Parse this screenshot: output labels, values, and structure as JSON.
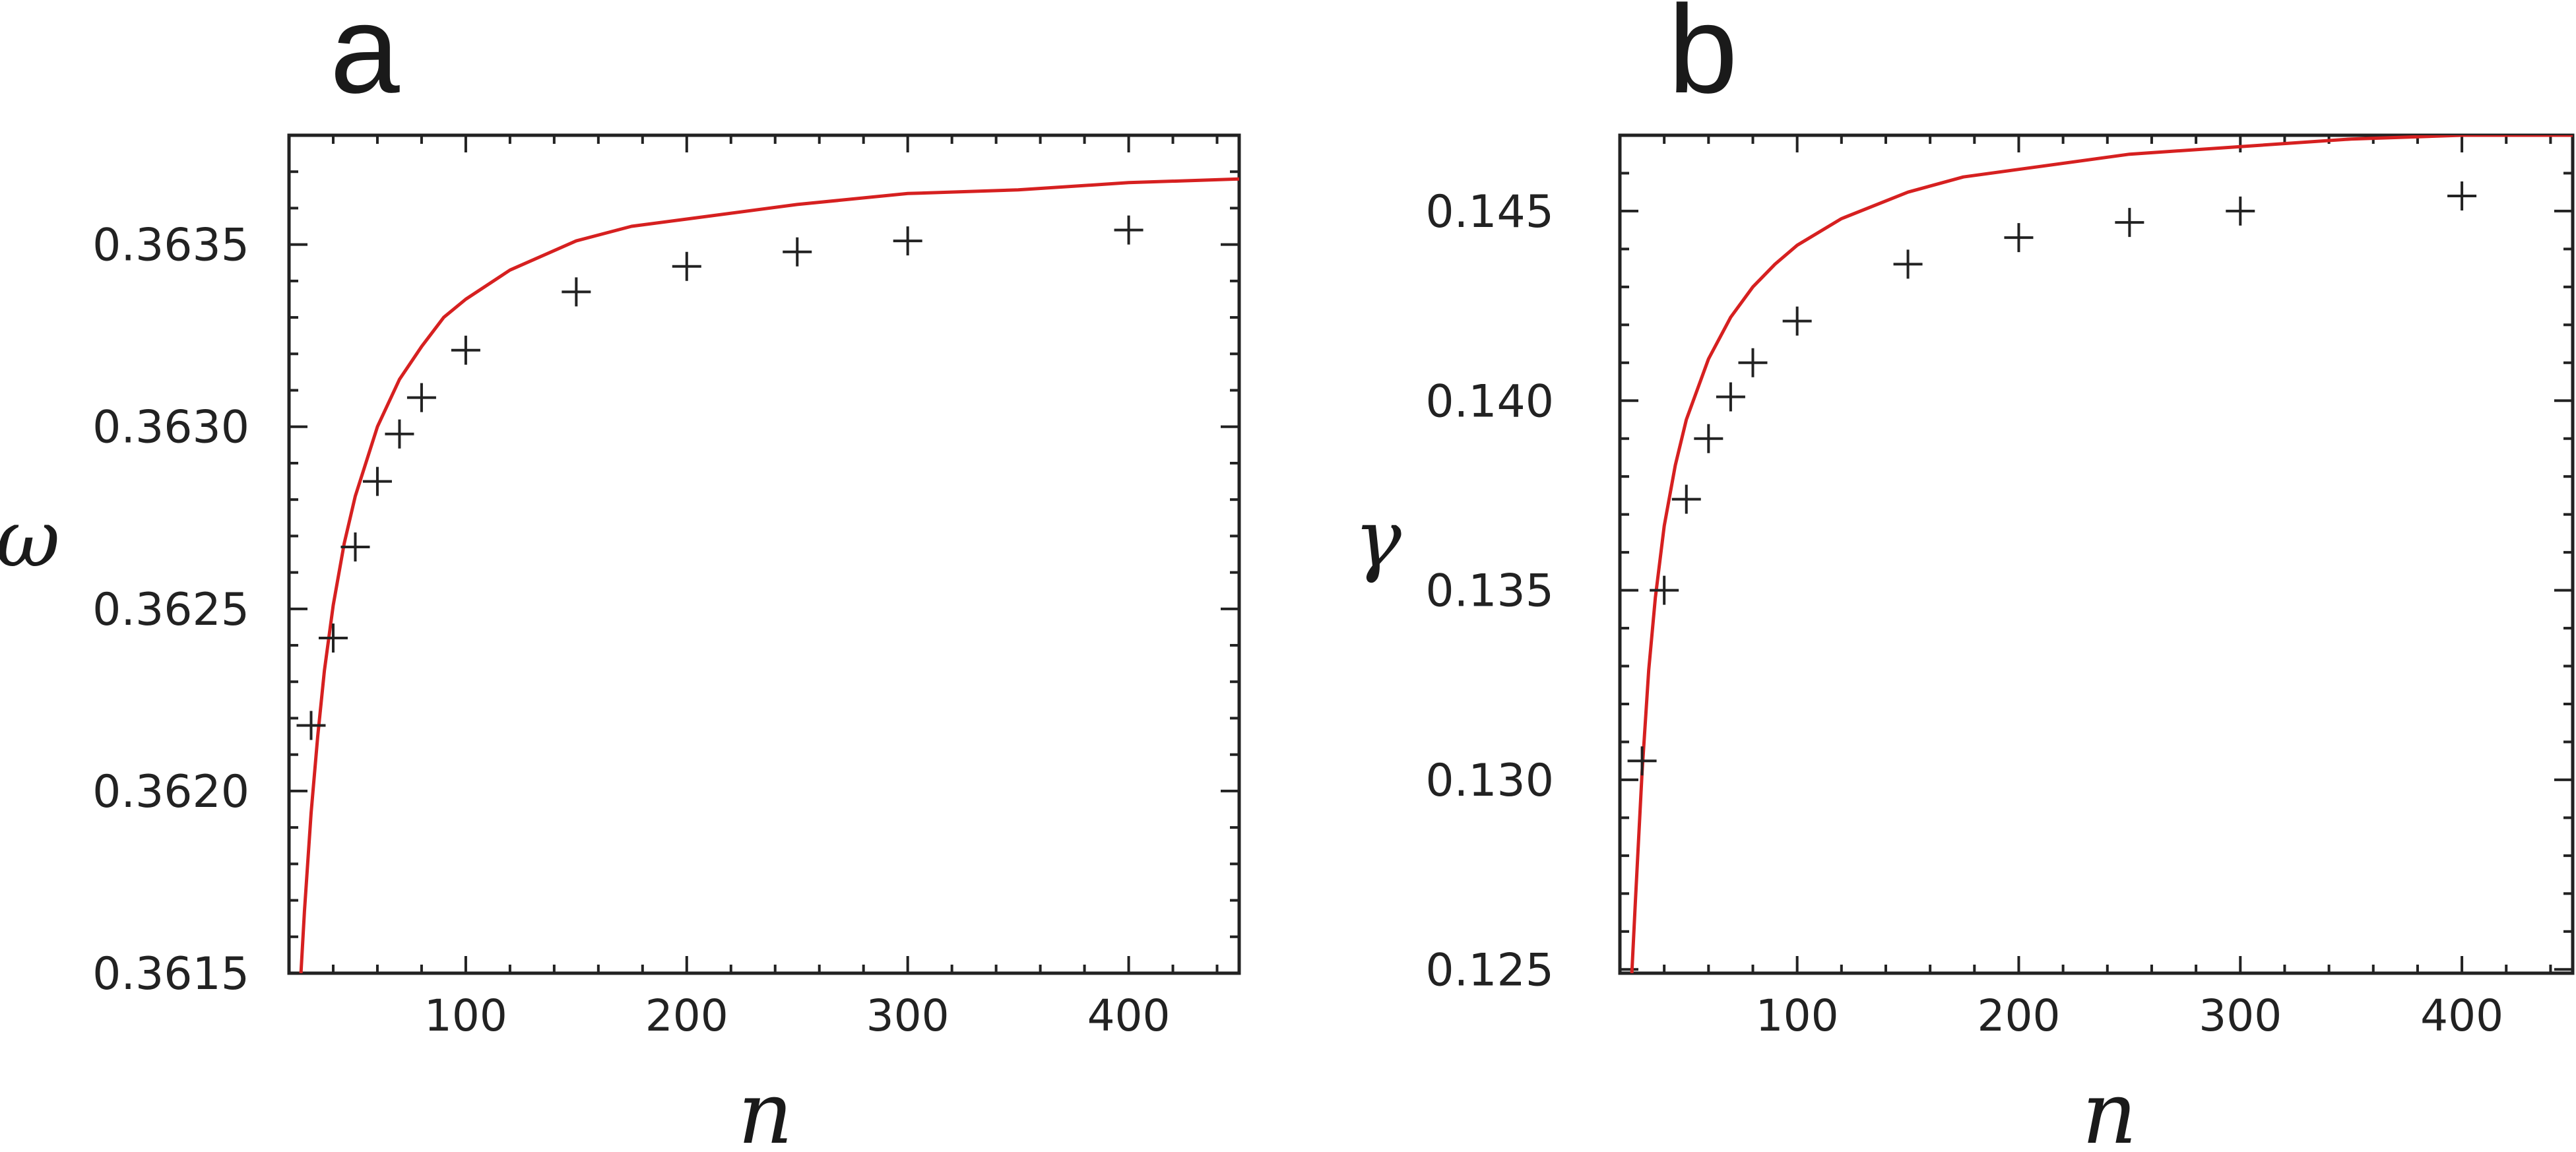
{
  "colors": {
    "fit_curve": "#d62020",
    "markers": "#222222",
    "axes": "#222222"
  },
  "chart_data": [
    {
      "type": "scatter",
      "panel_label": "a",
      "xlabel": "n",
      "ylabel": "ω",
      "xlim": [
        20,
        450
      ],
      "ylim": [
        0.3615,
        0.3638
      ],
      "xticks": [
        100,
        200,
        300,
        400
      ],
      "xtick_labels": [
        "100",
        "200",
        "300",
        "400"
      ],
      "yticks": [
        0.3615,
        0.362,
        0.3625,
        0.363,
        0.3635
      ],
      "ytick_labels": [
        "0.3615",
        "0.3620",
        "0.3625",
        "0.3630",
        "0.3635"
      ],
      "grid": false,
      "legend": false,
      "series": [
        {
          "kind": "markers",
          "marker": "plus",
          "x": [
            30,
            40,
            50,
            60,
            70,
            80,
            100,
            150,
            200,
            250,
            300,
            400
          ],
          "y": [
            0.36218,
            0.36242,
            0.36267,
            0.36285,
            0.36298,
            0.36308,
            0.36321,
            0.36337,
            0.36344,
            0.36348,
            0.36351,
            0.36354
          ]
        },
        {
          "kind": "fit_line",
          "x": [
            25.4,
            27,
            30,
            33,
            36,
            40,
            45,
            50,
            60,
            70,
            80,
            90,
            100,
            120,
            150,
            175,
            200,
            250,
            300,
            350,
            400,
            450
          ],
          "y": [
            0.3615,
            0.36167,
            0.36194,
            0.36215,
            0.36233,
            0.36251,
            0.36268,
            0.36281,
            0.363,
            0.36313,
            0.36322,
            0.3633,
            0.36335,
            0.36343,
            0.36351,
            0.36355,
            0.36357,
            0.36361,
            0.36364,
            0.36365,
            0.36367,
            0.36368
          ]
        }
      ]
    },
    {
      "type": "scatter",
      "panel_label": "b",
      "xlabel": "n",
      "ylabel": "γ",
      "xlim": [
        20,
        450
      ],
      "ylim": [
        0.1249,
        0.147
      ],
      "xticks": [
        100,
        200,
        300,
        400
      ],
      "xtick_labels": [
        "100",
        "200",
        "300",
        "400"
      ],
      "yticks": [
        0.125,
        0.13,
        0.135,
        0.14,
        0.145
      ],
      "ytick_labels": [
        "0.125",
        "0.130",
        "0.135",
        "0.140",
        "0.145"
      ],
      "grid": false,
      "legend": false,
      "series": [
        {
          "kind": "markers",
          "marker": "plus",
          "x": [
            30,
            40,
            50,
            60,
            70,
            80,
            100,
            150,
            200,
            250,
            300,
            400
          ],
          "y": [
            0.1305,
            0.135,
            0.1374,
            0.139,
            0.1401,
            0.141,
            0.1421,
            0.1436,
            0.1443,
            0.1447,
            0.145,
            0.1454
          ]
        },
        {
          "kind": "fit_line",
          "x": [
            25.4,
            27,
            30,
            33,
            36,
            40,
            45,
            50,
            60,
            70,
            80,
            90,
            100,
            120,
            150,
            175,
            200,
            250,
            300,
            350,
            400,
            450
          ],
          "y": [
            0.1249,
            0.1268,
            0.1302,
            0.1329,
            0.1348,
            0.1367,
            0.1383,
            0.1395,
            0.1411,
            0.1422,
            0.143,
            0.1436,
            0.1441,
            0.1448,
            0.1455,
            0.1459,
            0.1461,
            0.1465,
            0.1467,
            0.1469,
            0.147,
            0.147
          ]
        }
      ]
    }
  ]
}
